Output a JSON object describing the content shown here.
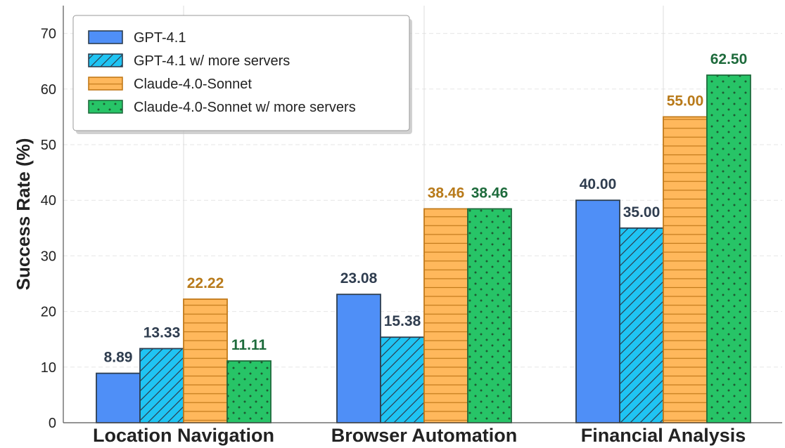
{
  "chart_data": {
    "type": "bar",
    "title": "",
    "xlabel": "",
    "ylabel": "Success Rate (%)",
    "ylim": [
      0,
      75
    ],
    "yticks": [
      0,
      10,
      20,
      30,
      40,
      50,
      60,
      70
    ],
    "grid": "horizontal dashed, vertical at category centers",
    "legend_position": "top-left",
    "categories": [
      "Location Navigation",
      "Browser Automation",
      "Financial Analysis"
    ],
    "series": [
      {
        "name": "GPT-4.1",
        "values": [
          8.89,
          23.08,
          40.0
        ],
        "labels": [
          "8.89",
          "23.08",
          "40.00"
        ],
        "color": "#4f8ff7",
        "hatch": "none",
        "label_color": "#2f3d4f"
      },
      {
        "name": "GPT-4.1 w/ more servers",
        "values": [
          13.33,
          15.38,
          35.0
        ],
        "labels": [
          "13.33",
          "15.38",
          "35.00"
        ],
        "color": "#1fc4f3",
        "hatch": "diagonal",
        "label_color": "#2f3d4f"
      },
      {
        "name": "Claude-4.0-Sonnet",
        "values": [
          22.22,
          38.46,
          55.0
        ],
        "labels": [
          "22.22",
          "38.46",
          "55.00"
        ],
        "color": "#ffb85c",
        "hatch": "horizontal",
        "label_color": "#b87a1a"
      },
      {
        "name": "Claude-4.0-Sonnet w/ more servers",
        "values": [
          11.11,
          38.46,
          62.5
        ],
        "labels": [
          "11.11",
          "38.46",
          "62.50"
        ],
        "color": "#27c467",
        "hatch": "dots",
        "label_color": "#1e6b3c"
      }
    ]
  }
}
